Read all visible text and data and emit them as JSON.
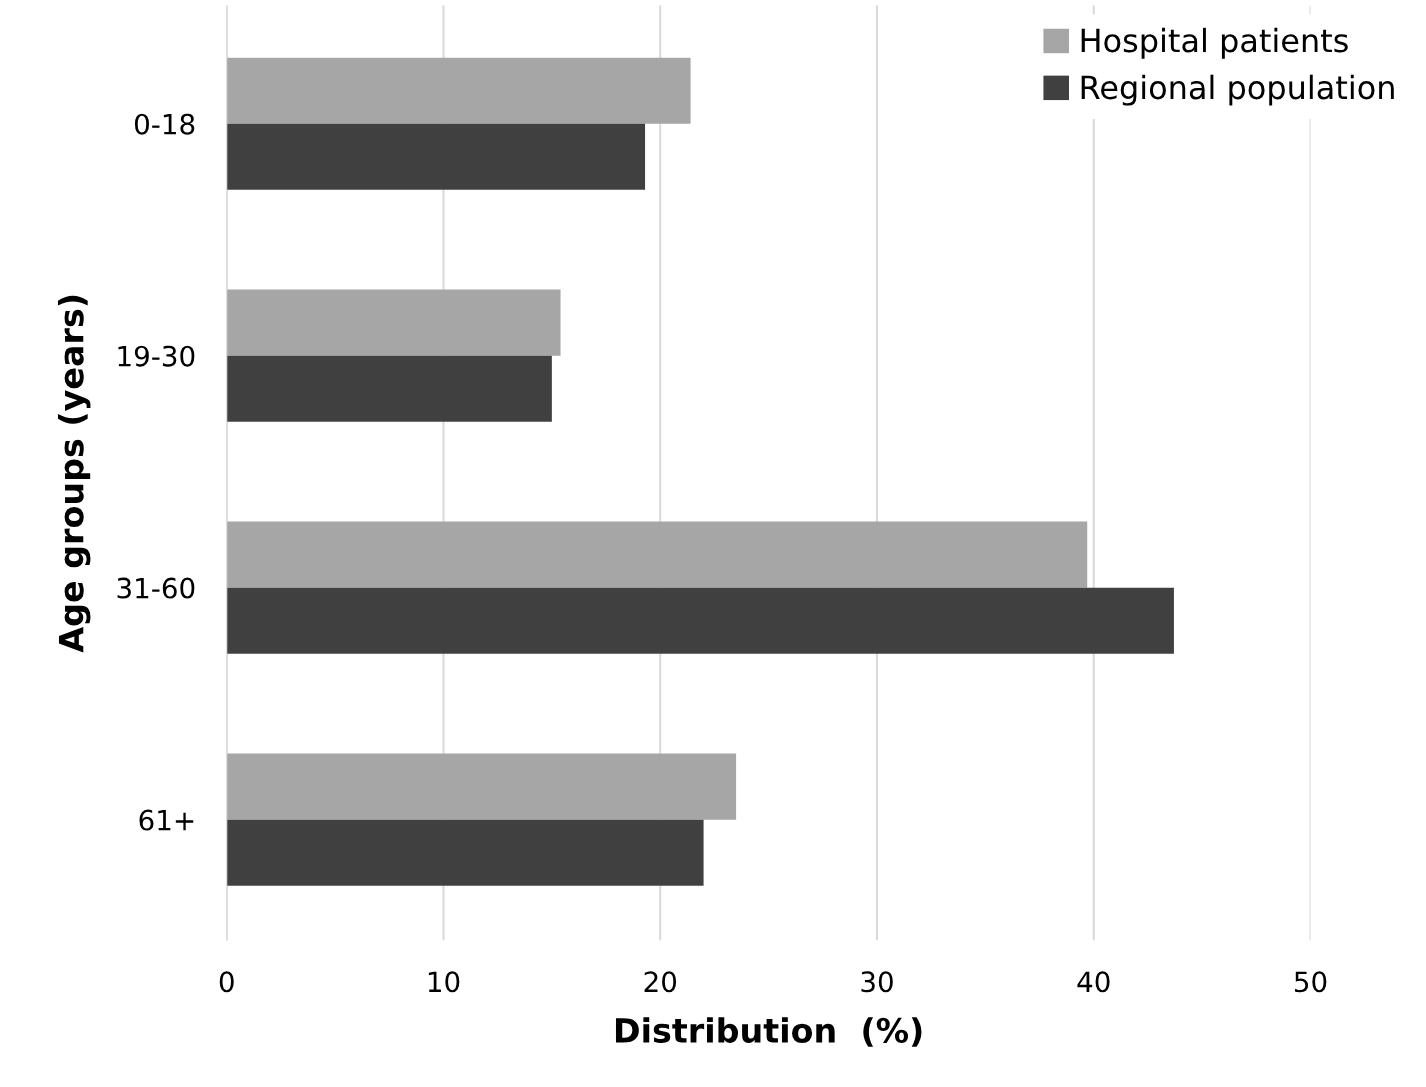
{
  "chart_data": {
    "type": "bar",
    "orientation": "horizontal",
    "xlabel": "Distribution  (%)",
    "ylabel": "Age groups (years)",
    "categories": [
      "0-18",
      "19-30",
      "31-60",
      "61+"
    ],
    "series": [
      {
        "name": "Hospital patients",
        "color": "#a6a6a6",
        "values": [
          21.4,
          15.4,
          39.7,
          23.5
        ]
      },
      {
        "name": "Regional population",
        "color": "#404040",
        "values": [
          19.3,
          15.0,
          43.7,
          22.0
        ]
      }
    ],
    "xlim": [
      0,
      50
    ],
    "xticks": [
      0,
      10,
      20,
      30,
      40,
      50
    ],
    "grid": "x",
    "legend": "top right"
  }
}
